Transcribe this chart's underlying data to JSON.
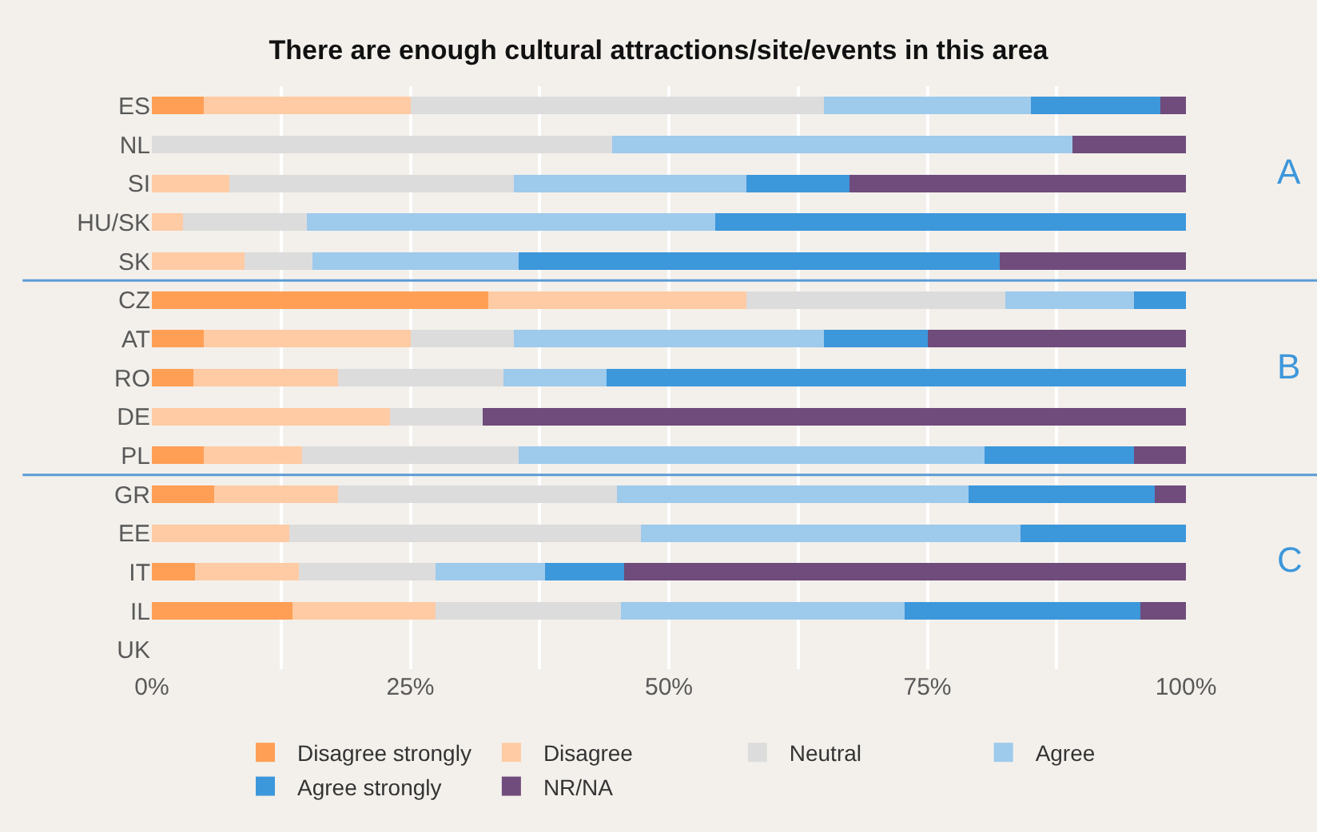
{
  "chart_data": {
    "type": "bar",
    "orientation": "horizontal",
    "stacked": true,
    "title": "There are enough cultural attractions/site/events in this area",
    "categories": [
      "ES",
      "NL",
      "SI",
      "HU/SK",
      "SK",
      "CZ",
      "AT",
      "RO",
      "DE",
      "PL",
      "GR",
      "EE",
      "IT",
      "IL",
      "UK"
    ],
    "series": [
      {
        "name": "Disagree strongly",
        "color": "#ff9f55",
        "values": [
          5,
          0,
          0,
          0,
          0,
          32.5,
          5,
          4,
          0,
          5,
          6,
          0,
          4.2,
          13.6,
          null
        ]
      },
      {
        "name": "Disagree",
        "color": "#ffcba4",
        "values": [
          20,
          0,
          7.5,
          3,
          9,
          25,
          20,
          14,
          23,
          9.5,
          12,
          13.3,
          10,
          13.8,
          null
        ]
      },
      {
        "name": "Neutral",
        "color": "#dcdcdc",
        "values": [
          40,
          44.5,
          27.5,
          12,
          6.5,
          25,
          10,
          16,
          9,
          21,
          27,
          34,
          13.2,
          18,
          null
        ]
      },
      {
        "name": "Agree",
        "color": "#9ecaec",
        "values": [
          20,
          44.5,
          22.5,
          39.5,
          20,
          12.5,
          30,
          10,
          0,
          45,
          34,
          36.7,
          10.6,
          27.4,
          null
        ]
      },
      {
        "name": "Agree strongly",
        "color": "#3d97db",
        "values": [
          12.5,
          0,
          10,
          45.5,
          46.5,
          5,
          10,
          56,
          0,
          14.5,
          18,
          16,
          7.7,
          22.8,
          null
        ]
      },
      {
        "name": "NR/NA",
        "color": "#6f4c7c",
        "values": [
          2.5,
          11,
          32.5,
          0,
          18,
          0,
          25,
          0,
          68,
          5,
          3,
          0,
          54.3,
          4.4,
          null
        ]
      }
    ],
    "xlim": [
      0,
      100
    ],
    "xticks": [
      {
        "value": 0,
        "label": "0%"
      },
      {
        "value": 12.5,
        "label": null
      },
      {
        "value": 25,
        "label": "25%"
      },
      {
        "value": 37.5,
        "label": null
      },
      {
        "value": 50,
        "label": "50%"
      },
      {
        "value": 62.5,
        "label": null
      },
      {
        "value": 75,
        "label": "75%"
      },
      {
        "value": 87.5,
        "label": null
      },
      {
        "value": 100,
        "label": "100%"
      }
    ],
    "grid": "x",
    "legend": "bottom",
    "annotations": [
      "A",
      "B",
      "C"
    ]
  }
}
